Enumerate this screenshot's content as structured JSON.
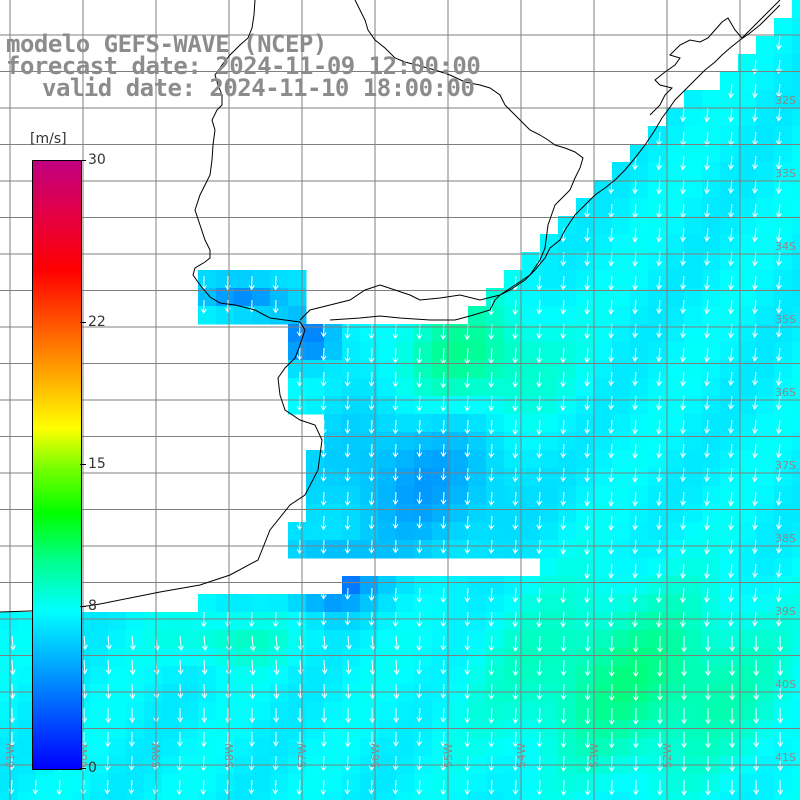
{
  "title": {
    "line1": "modelo GEFS-WAVE (NCEP)",
    "line2": "forecast date: 2024-11-09 12:00:00",
    "line3": "valid date: 2024-11-10 18:00:00"
  },
  "colorbar": {
    "unit": "[m/s]",
    "min": 0,
    "max": 30,
    "ticks": [
      {
        "label": "0",
        "value": 0
      },
      {
        "label": "8",
        "value": 8
      },
      {
        "label": "15",
        "value": 15
      },
      {
        "label": "22",
        "value": 22
      },
      {
        "label": "30",
        "value": 30
      }
    ]
  },
  "map": {
    "background_color": "#ffffff",
    "grid_color": "#7f7f7f",
    "coastline_color": "#000000",
    "arrow_color": "#ffffff",
    "lat_labels": [
      "32S",
      "33S",
      "34S",
      "35S",
      "36S",
      "37S",
      "38S",
      "39S",
      "40S",
      "41S"
    ],
    "lon_labels": [
      "61W",
      "60W",
      "59W",
      "58W",
      "57W",
      "56W",
      "55W",
      "54W",
      "53W",
      "52W"
    ]
  }
}
